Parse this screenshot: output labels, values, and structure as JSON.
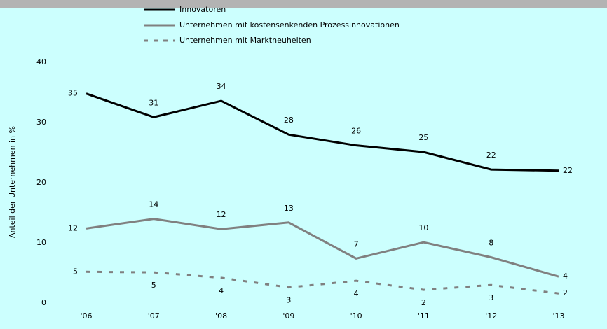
{
  "chart_data": {
    "type": "line",
    "y_label": "Anteil der Unternehmen in %",
    "categories": [
      "'06",
      "'07",
      "'08",
      "'09",
      "'10",
      "'11",
      "'12",
      "'13"
    ],
    "series": [
      {
        "name": "Innovatoren",
        "color": "#000000",
        "dash": false,
        "values": [
          34.8,
          30.9,
          33.6,
          28.0,
          26.2,
          25.1,
          22.2,
          22.0
        ],
        "value_labels": [
          "35",
          "31",
          "34",
          "28",
          "26",
          "25",
          "22",
          "22"
        ]
      },
      {
        "name": "Unternehmen mit kostensenkenden Prozessinnovationen",
        "color": "#808080",
        "dash": false,
        "values": [
          12.4,
          14.0,
          12.3,
          13.4,
          7.4,
          10.1,
          7.6,
          4.4
        ],
        "value_labels": [
          "12",
          "14",
          "12",
          "13",
          "7",
          "10",
          "8",
          "4"
        ]
      },
      {
        "name": "Unternehmen mit Marktneuheiten",
        "color": "#808080",
        "dash": true,
        "values": [
          5.2,
          5.1,
          4.2,
          2.6,
          3.7,
          2.2,
          3.0,
          1.6
        ],
        "value_labels": [
          "5",
          "5",
          "4",
          "3",
          "4",
          "2",
          "3",
          "2"
        ]
      }
    ],
    "ylim": [
      0,
      40
    ],
    "yticks": [
      0,
      10,
      20,
      30,
      40
    ],
    "grid": false
  }
}
